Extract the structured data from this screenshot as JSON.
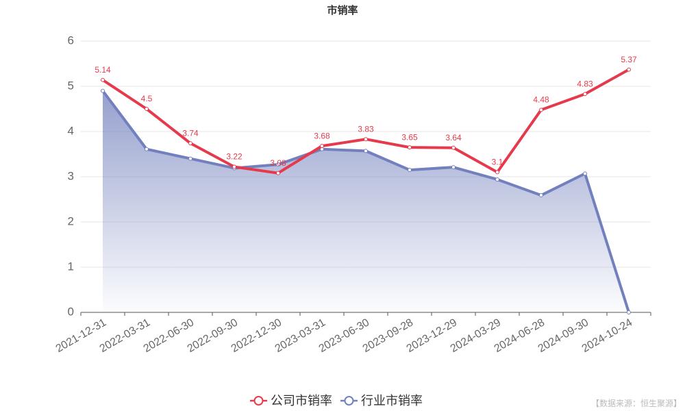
{
  "chart_data": {
    "type": "line",
    "title": "市销率",
    "categories": [
      "2021-12-31",
      "2022-03-31",
      "2022-06-30",
      "2022-09-30",
      "2022-12-30",
      "2023-03-31",
      "2023-06-30",
      "2023-09-28",
      "2023-12-29",
      "2024-03-29",
      "2024-06-28",
      "2024-09-30",
      "2024-10-24"
    ],
    "series": [
      {
        "name": "公司市销率",
        "color": "#e63a4c",
        "data_labels": true,
        "values": [
          5.14,
          4.5,
          3.74,
          3.22,
          3.08,
          3.68,
          3.83,
          3.65,
          3.64,
          3.1,
          4.48,
          4.83,
          5.37
        ]
      },
      {
        "name": "行业市销率",
        "color": "#7280bd",
        "area": true,
        "values": [
          4.9,
          3.61,
          3.4,
          3.19,
          3.27,
          3.61,
          3.57,
          3.15,
          3.21,
          2.94,
          2.59,
          3.07,
          0
        ]
      }
    ],
    "ylim": [
      0,
      6
    ],
    "yticks": [
      0,
      1,
      2,
      3,
      4,
      5,
      6
    ],
    "grid": true,
    "source": "【数据来源：恒生聚源】"
  }
}
